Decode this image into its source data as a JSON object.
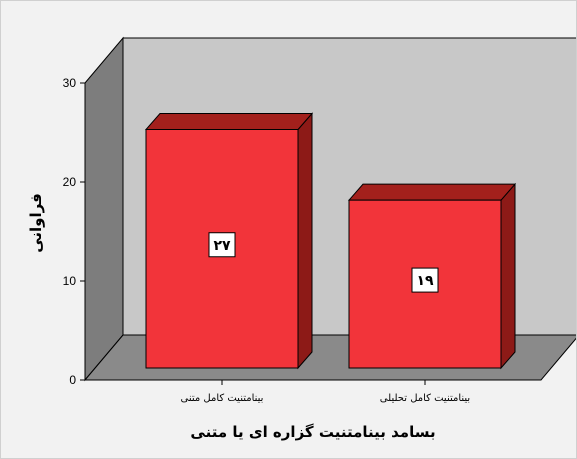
{
  "chart_data": {
    "type": "bar",
    "style": "3d",
    "categories": [
      "بینامتنیت کامل متنی",
      "بینامتنیت کامل تحلیلی"
    ],
    "values": [
      27,
      19
    ],
    "value_labels": [
      "۲۷",
      "۱۹"
    ],
    "xlabel": "بسامد بینامتنیت گزاره ای یا متنی",
    "ylabel": "فراوانی",
    "ylim": [
      0,
      30
    ],
    "yticks": [
      0,
      10,
      20,
      30
    ],
    "grid": false,
    "colors": {
      "bar_front": "#f2343a",
      "bar_top": "#a3201c",
      "bar_side": "#8d1a17",
      "back_wall": "#c8c8c8",
      "side_wall": "#7d7d7d",
      "floor": "#8a8a8a",
      "page_bg": "#f2f2f2"
    }
  }
}
